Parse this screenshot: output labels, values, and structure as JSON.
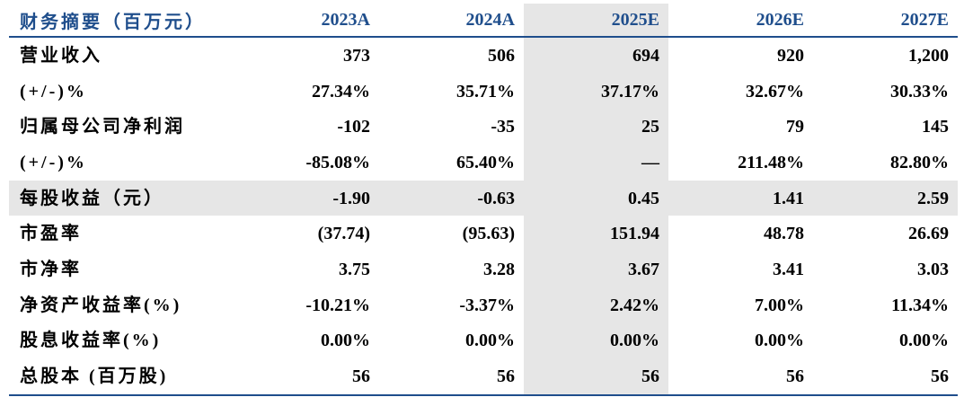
{
  "table": {
    "header": {
      "label": "财务摘要（百万元）",
      "years": [
        "2023A",
        "2024A",
        "2025E",
        "2026E",
        "2027E"
      ]
    },
    "rows": [
      {
        "label": "营业收入",
        "values": [
          "373",
          "506",
          "694",
          "920",
          "1,200"
        ]
      },
      {
        "label": "(+/-)%",
        "values": [
          "27.34%",
          "35.71%",
          "37.17%",
          "32.67%",
          "30.33%"
        ]
      },
      {
        "label": "归属母公司净利润",
        "values": [
          "-102",
          "-35",
          "25",
          "79",
          "145"
        ]
      },
      {
        "label": "(+/-)%",
        "values": [
          "-85.08%",
          "65.40%",
          "—",
          "211.48%",
          "82.80%"
        ]
      },
      {
        "label": "每股收益（元）",
        "values": [
          "-1.90",
          "-0.63",
          "0.45",
          "1.41",
          "2.59"
        ]
      },
      {
        "label": "市盈率",
        "values": [
          "(37.74)",
          "(95.63)",
          "151.94",
          "48.78",
          "26.69"
        ]
      },
      {
        "label": "市净率",
        "values": [
          "3.75",
          "3.28",
          "3.67",
          "3.41",
          "3.03"
        ]
      },
      {
        "label": "净资产收益率(%)",
        "values": [
          "-10.21%",
          "-3.37%",
          "2.42%",
          "7.00%",
          "11.34%"
        ]
      },
      {
        "label": "股息收益率(%)",
        "values": [
          "0.00%",
          "0.00%",
          "0.00%",
          "0.00%",
          "0.00%"
        ]
      },
      {
        "label": "总股本 (百万股)",
        "values": [
          "56",
          "56",
          "56",
          "56",
          "56"
        ]
      }
    ],
    "colors": {
      "header_text": "#1f4e8c",
      "rule": "#1f4e8c",
      "shade": "#e6e6e6",
      "body_text": "#000000"
    },
    "shaded_column": "2025E",
    "shaded_row": "每股收益（元）"
  }
}
